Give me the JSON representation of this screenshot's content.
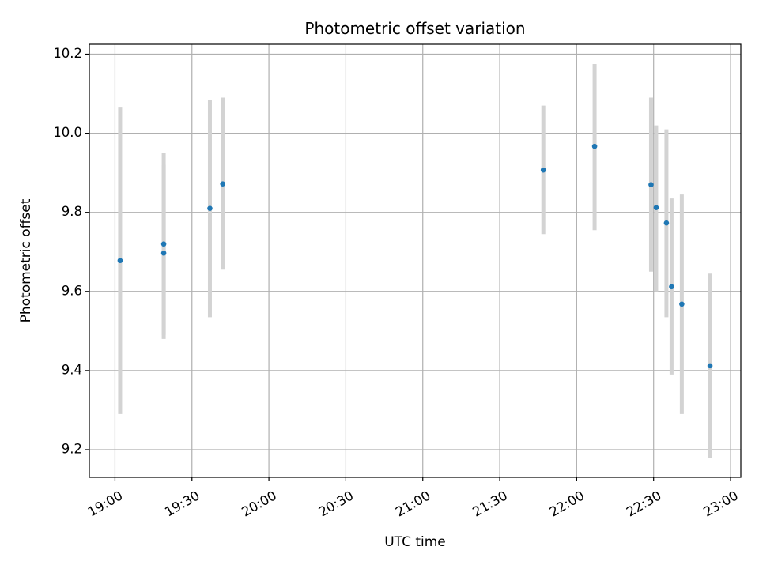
{
  "chart_data": {
    "type": "scatter",
    "title": "Photometric offset variation",
    "xlabel": "UTC time",
    "ylabel": "Photometric offset",
    "x_ticks": [
      "19:00",
      "19:30",
      "20:00",
      "20:30",
      "21:00",
      "21:30",
      "22:00",
      "22:30",
      "23:00"
    ],
    "y_ticks": [
      "9.2",
      "9.4",
      "9.6",
      "9.8",
      "10.0",
      "10.2"
    ],
    "xlim": [
      "18:50",
      "23:04"
    ],
    "ylim": [
      9.13,
      10.225
    ],
    "grid": true,
    "colors": {
      "points": "#1f77b4",
      "errorbars": "#d3d3d3",
      "grid": "#b0b0b0"
    },
    "points": [
      {
        "time": "19:02",
        "value": 9.678,
        "low": 9.29,
        "high": 10.065
      },
      {
        "time": "19:19",
        "value": 9.697,
        "low": 9.48,
        "high": 9.92
      },
      {
        "time": "19:19",
        "value": 9.72,
        "low": 9.49,
        "high": 9.95
      },
      {
        "time": "19:37",
        "value": 9.81,
        "low": 9.535,
        "high": 10.085
      },
      {
        "time": "19:42",
        "value": 9.872,
        "low": 9.655,
        "high": 10.09
      },
      {
        "time": "21:47",
        "value": 9.907,
        "low": 9.745,
        "high": 10.07
      },
      {
        "time": "22:07",
        "value": 9.967,
        "low": 9.755,
        "high": 10.175
      },
      {
        "time": "22:29",
        "value": 9.87,
        "low": 9.65,
        "high": 10.09
      },
      {
        "time": "22:31",
        "value": 9.812,
        "low": 9.6,
        "high": 10.02
      },
      {
        "time": "22:35",
        "value": 9.773,
        "low": 9.535,
        "high": 10.01
      },
      {
        "time": "22:37",
        "value": 9.612,
        "low": 9.39,
        "high": 9.835
      },
      {
        "time": "22:41",
        "value": 9.568,
        "low": 9.29,
        "high": 9.845
      },
      {
        "time": "22:52",
        "value": 9.412,
        "low": 9.18,
        "high": 9.645
      }
    ]
  }
}
